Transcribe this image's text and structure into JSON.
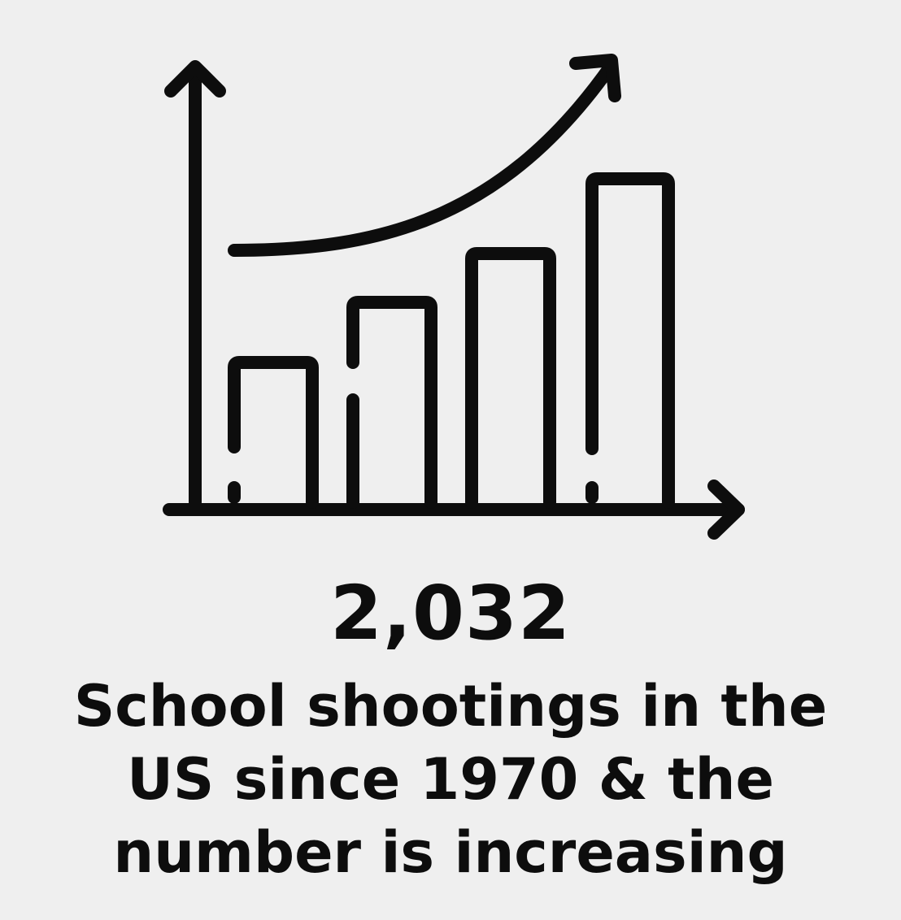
{
  "infographic": {
    "icon": "growth-bar-chart-icon",
    "stat_value": "2,032",
    "caption_lines": [
      "School shootings in the",
      "US since 1970 & the",
      "number is increasing"
    ]
  },
  "colors": {
    "background": "#efefef",
    "ink": "#0d0d0d"
  }
}
